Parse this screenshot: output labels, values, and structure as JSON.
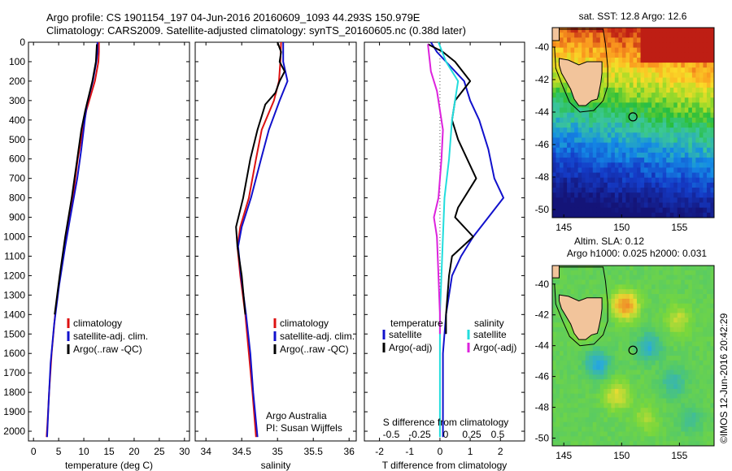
{
  "header": {
    "title_line1": "Argo profile: CS 1901154_197 04-Jun-2016 20160609_1093 44.293S 150.979E",
    "title_line2": "Climatology: CARS2009. Satellite-adjusted climatology: synTS_20160605.nc (0.38d later)"
  },
  "footer": {
    "stamp": "©IMOS 12-Jun-2016 20:42:29"
  },
  "colors": {
    "climatology": "#dd1111",
    "satellite": "#1111cc",
    "argo": "#000000",
    "cyan": "#22dddd",
    "magenta": "#dd22dd",
    "land": "#f2c49b"
  },
  "chart_data": [
    {
      "id": "temp",
      "type": "line",
      "xlabel": "temperature (deg C)",
      "ylabel": "",
      "xlim": [
        -1,
        31
      ],
      "ylim": [
        2050,
        0
      ],
      "xticks": [
        0,
        5,
        10,
        15,
        20,
        25,
        30
      ],
      "yticks": [
        0,
        100,
        200,
        300,
        400,
        500,
        600,
        700,
        800,
        900,
        1000,
        1100,
        1200,
        1300,
        1400,
        1500,
        1600,
        1700,
        1800,
        1900,
        2000
      ],
      "legend": [
        "climatology",
        "satellite-adj. clim.",
        "Argo(..raw -QC)"
      ],
      "series": [
        {
          "name": "climatology",
          "color": "#dd1111",
          "points": [
            [
              13.0,
              0
            ],
            [
              13.0,
              50
            ],
            [
              12.9,
              100
            ],
            [
              12.2,
              200
            ],
            [
              10.5,
              350
            ],
            [
              9.8,
              450
            ],
            [
              8.8,
              600
            ],
            [
              7.8,
              800
            ],
            [
              6.5,
              1000
            ],
            [
              5.3,
              1200
            ],
            [
              4.3,
              1400
            ],
            [
              3.6,
              1600
            ],
            [
              3.1,
              1800
            ],
            [
              2.8,
              1950
            ],
            [
              2.6,
              2030
            ]
          ]
        },
        {
          "name": "satellite-adj. clim.",
          "color": "#1111cc",
          "points": [
            [
              12.7,
              0
            ],
            [
              12.7,
              50
            ],
            [
              12.5,
              100
            ],
            [
              11.8,
              200
            ],
            [
              10.6,
              320
            ],
            [
              10.2,
              400
            ],
            [
              9.5,
              550
            ],
            [
              8.7,
              700
            ],
            [
              7.3,
              900
            ],
            [
              6.3,
              1050
            ],
            [
              5.1,
              1250
            ],
            [
              4.1,
              1450
            ],
            [
              3.4,
              1650
            ],
            [
              3.0,
              1850
            ],
            [
              2.7,
              2030
            ]
          ]
        },
        {
          "name": "Argo(..raw -QC)",
          "color": "#000000",
          "points": [
            [
              12.6,
              10
            ],
            [
              12.4,
              100
            ],
            [
              11.7,
              200
            ],
            [
              10.3,
              350
            ],
            [
              9.5,
              450
            ],
            [
              8.7,
              600
            ],
            [
              7.6,
              800
            ],
            [
              6.3,
              1000
            ],
            [
              5.2,
              1200
            ],
            [
              4.2,
              1400
            ]
          ]
        }
      ]
    },
    {
      "id": "sal",
      "type": "line",
      "xlabel": "salinity",
      "ylabel": "",
      "xlim": [
        33.85,
        36.1
      ],
      "ylim": [
        2050,
        0
      ],
      "xticks": [
        34,
        34.5,
        35,
        35.5,
        36
      ],
      "legend": [
        "climatology",
        "satellite-adj. clim.",
        "Argo(..raw -QC)"
      ],
      "annotation": [
        "Argo Australia",
        "PI: Susan Wijffels"
      ],
      "series": [
        {
          "name": "climatology",
          "color": "#dd1111",
          "points": [
            [
              35.05,
              0
            ],
            [
              35.04,
              100
            ],
            [
              35.02,
              200
            ],
            [
              34.95,
              300
            ],
            [
              34.78,
              450
            ],
            [
              34.7,
              600
            ],
            [
              34.6,
              800
            ],
            [
              34.48,
              950
            ],
            [
              34.44,
              1050
            ],
            [
              34.48,
              1200
            ],
            [
              34.55,
              1400
            ],
            [
              34.6,
              1600
            ],
            [
              34.65,
              1800
            ],
            [
              34.7,
              2030
            ]
          ]
        },
        {
          "name": "satellite-adj. clim.",
          "color": "#1111cc",
          "points": [
            [
              35.08,
              0
            ],
            [
              35.08,
              100
            ],
            [
              35.14,
              200
            ],
            [
              35.03,
              300
            ],
            [
              34.88,
              450
            ],
            [
              34.77,
              600
            ],
            [
              34.63,
              800
            ],
            [
              34.5,
              950
            ],
            [
              34.45,
              1050
            ],
            [
              34.49,
              1200
            ],
            [
              34.56,
              1400
            ],
            [
              34.62,
              1600
            ],
            [
              34.66,
              1800
            ],
            [
              34.72,
              2030
            ]
          ]
        },
        {
          "name": "Argo(..raw -QC)",
          "color": "#000000",
          "points": [
            [
              35.0,
              0
            ],
            [
              35.05,
              50
            ],
            [
              35.03,
              100
            ],
            [
              35.1,
              150
            ],
            [
              35.03,
              200
            ],
            [
              34.97,
              260
            ],
            [
              34.83,
              320
            ],
            [
              34.72,
              450
            ],
            [
              34.62,
              600
            ],
            [
              34.52,
              800
            ],
            [
              34.42,
              950
            ],
            [
              34.44,
              1050
            ],
            [
              34.5,
              1200
            ],
            [
              34.55,
              1400
            ]
          ]
        }
      ]
    },
    {
      "id": "diff",
      "type": "line",
      "xlabel": "T difference from climatology",
      "ylabel": "",
      "xlim": [
        -2.5,
        2.8
      ],
      "ylim": [
        2050,
        0
      ],
      "xticks": [
        -2,
        -1,
        0,
        1,
        2
      ],
      "top_label": "S difference from climatology",
      "top_ticks": [
        "-0.5",
        "-0.25",
        "0",
        "0.25",
        "0.5"
      ],
      "legend_left_title": "temperature",
      "legend_right_title": "salinity",
      "legend_left": [
        "satellite",
        "Argo(-adj)"
      ],
      "legend_right": [
        "satellite",
        "Argo(-adj)"
      ],
      "series": [
        {
          "name": "T satellite",
          "color": "#1111cc",
          "points": [
            [
              -0.3,
              0
            ],
            [
              -0.1,
              50
            ],
            [
              0.2,
              100
            ],
            [
              0.8,
              200
            ],
            [
              1.0,
              300
            ],
            [
              1.3,
              400
            ],
            [
              1.6,
              550
            ],
            [
              1.8,
              700
            ],
            [
              2.1,
              800
            ],
            [
              1.6,
              900
            ],
            [
              1.1,
              1000
            ],
            [
              0.7,
              1100
            ],
            [
              0.4,
              1200
            ],
            [
              0.2,
              1400
            ],
            [
              0.1,
              1600
            ],
            [
              0.1,
              1800
            ],
            [
              0.1,
              2030
            ]
          ]
        },
        {
          "name": "T Argo(-adj)",
          "color": "#000000",
          "points": [
            [
              -0.4,
              10
            ],
            [
              0.1,
              50
            ],
            [
              0.5,
              100
            ],
            [
              1.0,
              200
            ],
            [
              0.5,
              300
            ],
            [
              0.4,
              400
            ],
            [
              0.6,
              500
            ],
            [
              1.2,
              700
            ],
            [
              0.6,
              850
            ],
            [
              0.5,
              900
            ],
            [
              1.1,
              1000
            ],
            [
              0.4,
              1100
            ],
            [
              0.3,
              1200
            ],
            [
              0.2,
              1400
            ],
            [
              0.2,
              1500
            ]
          ]
        },
        {
          "name": "S satellite",
          "color": "#22dddd",
          "points": [
            [
              -0.05,
              0
            ],
            [
              0.2,
              100
            ],
            [
              0.6,
              200
            ],
            [
              0.5,
              300
            ],
            [
              0.4,
              400
            ],
            [
              0.3,
              600
            ],
            [
              0.15,
              800
            ],
            [
              0.1,
              1000
            ],
            [
              0.0,
              1400
            ],
            [
              0.0,
              1800
            ],
            [
              0.0,
              2030
            ]
          ]
        },
        {
          "name": "S Argo(-adj)",
          "color": "#dd22dd",
          "points": [
            [
              -0.4,
              10
            ],
            [
              -0.3,
              150
            ],
            [
              -0.1,
              250
            ],
            [
              0.0,
              350
            ],
            [
              0.1,
              450
            ],
            [
              0.05,
              600
            ],
            [
              -0.05,
              800
            ],
            [
              -0.2,
              900
            ],
            [
              -0.1,
              1000
            ],
            [
              -0.05,
              1200
            ],
            [
              0.0,
              1400
            ],
            [
              0.0,
              1500
            ]
          ]
        }
      ]
    },
    {
      "id": "sst_map",
      "type": "heatmap",
      "title": "sat. SST: 12.8 Argo: 12.6",
      "xlim": [
        144,
        158
      ],
      "ylim": [
        -50.5,
        -38.8
      ],
      "xticks": [
        145,
        150,
        155
      ],
      "yticks": [
        -40,
        -42,
        -44,
        -46,
        -48,
        -50
      ],
      "marker": [
        150.979,
        -44.293
      ]
    },
    {
      "id": "sla_map",
      "type": "heatmap",
      "title_line1": "Altim. SLA: 0.12",
      "title_line2": "Argo h1000: 0.025 h2000: 0.031",
      "xlim": [
        144,
        158
      ],
      "ylim": [
        -50.5,
        -38.8
      ],
      "xticks": [
        145,
        150,
        155
      ],
      "yticks": [
        -40,
        -42,
        -44,
        -46,
        -48,
        -50
      ],
      "marker": [
        150.979,
        -44.293
      ]
    }
  ]
}
